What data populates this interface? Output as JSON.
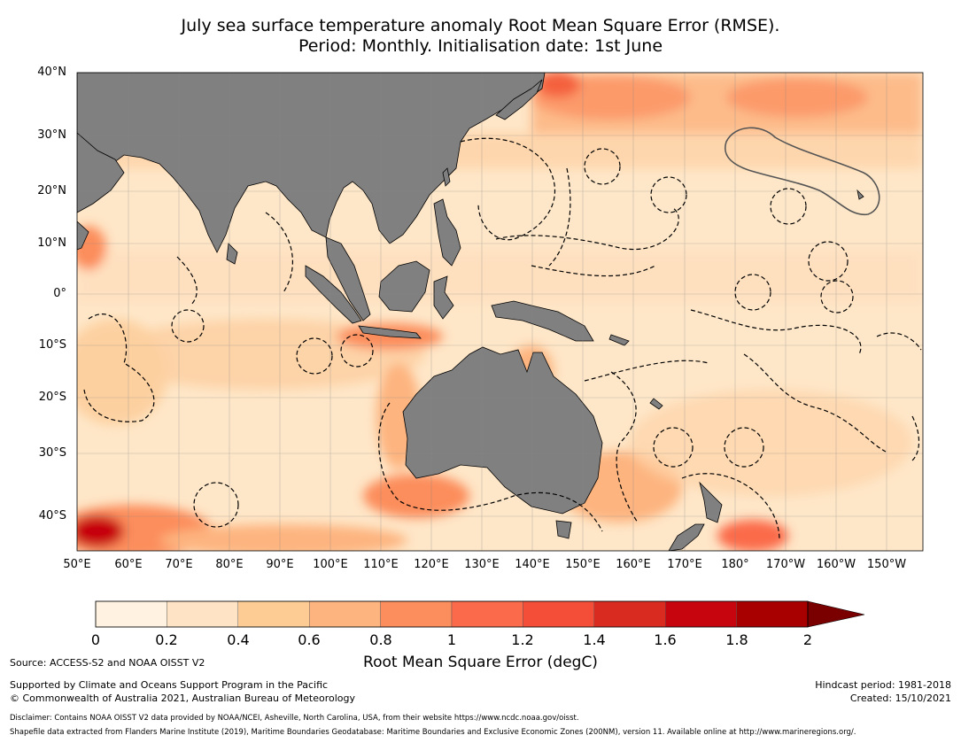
{
  "title_line1": "July sea surface temperature anomaly Root Mean Square Error (RMSE).",
  "title_line2": "Period: Monthly. Initialisation date: 1st June",
  "map": {
    "lat_labels": [
      "40°N",
      "30°N",
      "20°N",
      "10°N",
      "0°",
      "10°S",
      "20°S",
      "30°S",
      "40°S"
    ],
    "lon_labels": [
      "50°E",
      "60°E",
      "70°E",
      "80°E",
      "90°E",
      "100°E",
      "110°E",
      "120°E",
      "130°E",
      "140°E",
      "150°E",
      "160°E",
      "170°E",
      "180°",
      "170°W",
      "160°W",
      "150°W"
    ],
    "land_color": "#808080",
    "ocean_base_color": "#fee7c8",
    "eez_boundary_style": "dashed black"
  },
  "colorbar": {
    "ticks": [
      "0",
      "0.2",
      "0.4",
      "0.6",
      "0.8",
      "1",
      "1.2",
      "1.4",
      "1.6",
      "1.8",
      "2"
    ],
    "colors": [
      "#fff2e0",
      "#fee3c4",
      "#fdcc95",
      "#fdb47f",
      "#fc8d5c",
      "#fb6a4a",
      "#f44d38",
      "#d92b1f",
      "#c7050f",
      "#a80000"
    ],
    "extend_color": "#7a0000",
    "label": "Root Mean Square Error (degC)"
  },
  "footer": {
    "source": "Source: ACCESS-S2 and NOAA OISST V2",
    "supported": "Supported by Climate and Oceans Support Program in the Pacific",
    "copyright": "© Commonwealth of Australia 2021, Australian Bureau of Meteorology",
    "hindcast": "Hindcast period: 1981-2018",
    "created": "Created: 15/10/2021",
    "disclaimer": "Disclaimer: Contains NOAA OISST V2 data provided by NOAA/NCEI, Asheville, North Carolina, USA, from their website https://www.ncdc.noaa.gov/oisst.",
    "shapefile": "Shapefile data extracted from Flanders Marine Institute (2019), Maritime Boundaries Geodatabase: Maritime Boundaries and Exclusive Economic Zones (200NM), version 11. Available online at http://www.marineregions.org/."
  }
}
